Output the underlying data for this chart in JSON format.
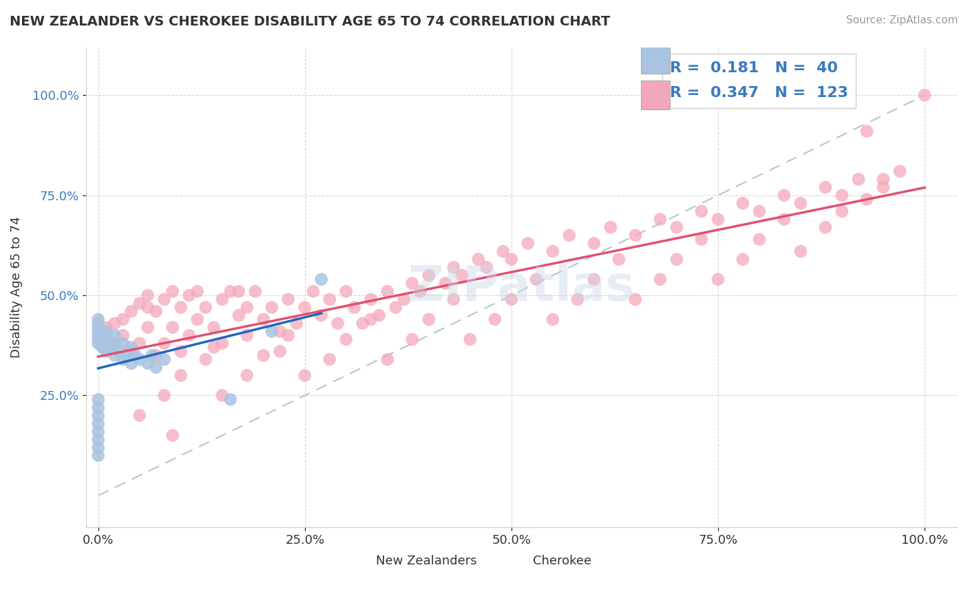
{
  "title": "NEW ZEALANDER VS CHEROKEE DISABILITY AGE 65 TO 74 CORRELATION CHART",
  "source": "Source: ZipAtlas.com",
  "ylabel": "Disability Age 65 to 74",
  "R_nz": 0.181,
  "N_nz": 40,
  "R_ch": 0.347,
  "N_ch": 123,
  "nz_color": "#a8c4e0",
  "ch_color": "#f4a7b9",
  "nz_line_color": "#2266bb",
  "ch_line_color": "#e05070",
  "trendline_dash_color": "#b8c4d0",
  "background_color": "#ffffff",
  "grid_color": "#cccccc",
  "nz_scatter_x": [
    0.0,
    0.0,
    0.0,
    0.0,
    0.0,
    0.0,
    0.0,
    0.0,
    0.0,
    0.0,
    0.0,
    0.0,
    0.0,
    0.0,
    0.0,
    0.005,
    0.005,
    0.008,
    0.01,
    0.01,
    0.01,
    0.015,
    0.02,
    0.02,
    0.02,
    0.025,
    0.03,
    0.03,
    0.035,
    0.04,
    0.04,
    0.045,
    0.05,
    0.06,
    0.065,
    0.07,
    0.08,
    0.16,
    0.21,
    0.27
  ],
  "nz_scatter_y": [
    0.38,
    0.39,
    0.4,
    0.41,
    0.42,
    0.43,
    0.44,
    0.1,
    0.12,
    0.14,
    0.16,
    0.18,
    0.2,
    0.22,
    0.24,
    0.37,
    0.39,
    0.4,
    0.36,
    0.38,
    0.41,
    0.37,
    0.35,
    0.38,
    0.4,
    0.36,
    0.34,
    0.38,
    0.35,
    0.33,
    0.37,
    0.35,
    0.34,
    0.33,
    0.35,
    0.32,
    0.34,
    0.24,
    0.41,
    0.54
  ],
  "ch_scatter_x": [
    0.01,
    0.02,
    0.03,
    0.03,
    0.04,
    0.04,
    0.05,
    0.05,
    0.06,
    0.06,
    0.07,
    0.07,
    0.08,
    0.08,
    0.09,
    0.09,
    0.1,
    0.1,
    0.11,
    0.11,
    0.12,
    0.12,
    0.13,
    0.14,
    0.15,
    0.15,
    0.16,
    0.17,
    0.18,
    0.18,
    0.19,
    0.2,
    0.21,
    0.22,
    0.22,
    0.23,
    0.24,
    0.25,
    0.26,
    0.27,
    0.28,
    0.29,
    0.3,
    0.31,
    0.32,
    0.33,
    0.34,
    0.35,
    0.36,
    0.37,
    0.38,
    0.39,
    0.4,
    0.42,
    0.43,
    0.44,
    0.46,
    0.47,
    0.49,
    0.5,
    0.52,
    0.55,
    0.57,
    0.6,
    0.62,
    0.65,
    0.68,
    0.7,
    0.73,
    0.75,
    0.78,
    0.8,
    0.83,
    0.85,
    0.88,
    0.9,
    0.92,
    0.95,
    0.97,
    1.0,
    0.05,
    0.08,
    0.1,
    0.13,
    0.15,
    0.18,
    0.2,
    0.23,
    0.25,
    0.28,
    0.3,
    0.33,
    0.35,
    0.38,
    0.4,
    0.43,
    0.45,
    0.48,
    0.5,
    0.53,
    0.55,
    0.58,
    0.6,
    0.63,
    0.65,
    0.68,
    0.7,
    0.73,
    0.75,
    0.78,
    0.8,
    0.83,
    0.85,
    0.88,
    0.9,
    0.93,
    0.95,
    0.93,
    0.02,
    0.06,
    0.09,
    0.14,
    0.17
  ],
  "ch_scatter_y": [
    0.42,
    0.38,
    0.44,
    0.4,
    0.46,
    0.36,
    0.48,
    0.38,
    0.5,
    0.42,
    0.46,
    0.35,
    0.49,
    0.38,
    0.51,
    0.42,
    0.47,
    0.36,
    0.5,
    0.4,
    0.51,
    0.44,
    0.47,
    0.42,
    0.49,
    0.38,
    0.51,
    0.45,
    0.47,
    0.4,
    0.51,
    0.44,
    0.47,
    0.41,
    0.36,
    0.49,
    0.43,
    0.47,
    0.51,
    0.45,
    0.49,
    0.43,
    0.51,
    0.47,
    0.43,
    0.49,
    0.45,
    0.51,
    0.47,
    0.49,
    0.53,
    0.51,
    0.55,
    0.53,
    0.57,
    0.55,
    0.59,
    0.57,
    0.61,
    0.59,
    0.63,
    0.61,
    0.65,
    0.63,
    0.67,
    0.65,
    0.69,
    0.67,
    0.71,
    0.69,
    0.73,
    0.71,
    0.75,
    0.73,
    0.77,
    0.75,
    0.79,
    0.77,
    0.81,
    1.0,
    0.2,
    0.25,
    0.3,
    0.34,
    0.25,
    0.3,
    0.35,
    0.4,
    0.3,
    0.34,
    0.39,
    0.44,
    0.34,
    0.39,
    0.44,
    0.49,
    0.39,
    0.44,
    0.49,
    0.54,
    0.44,
    0.49,
    0.54,
    0.59,
    0.49,
    0.54,
    0.59,
    0.64,
    0.54,
    0.59,
    0.64,
    0.69,
    0.61,
    0.67,
    0.71,
    0.74,
    0.79,
    0.91,
    0.43,
    0.47,
    0.15,
    0.37,
    0.51
  ]
}
